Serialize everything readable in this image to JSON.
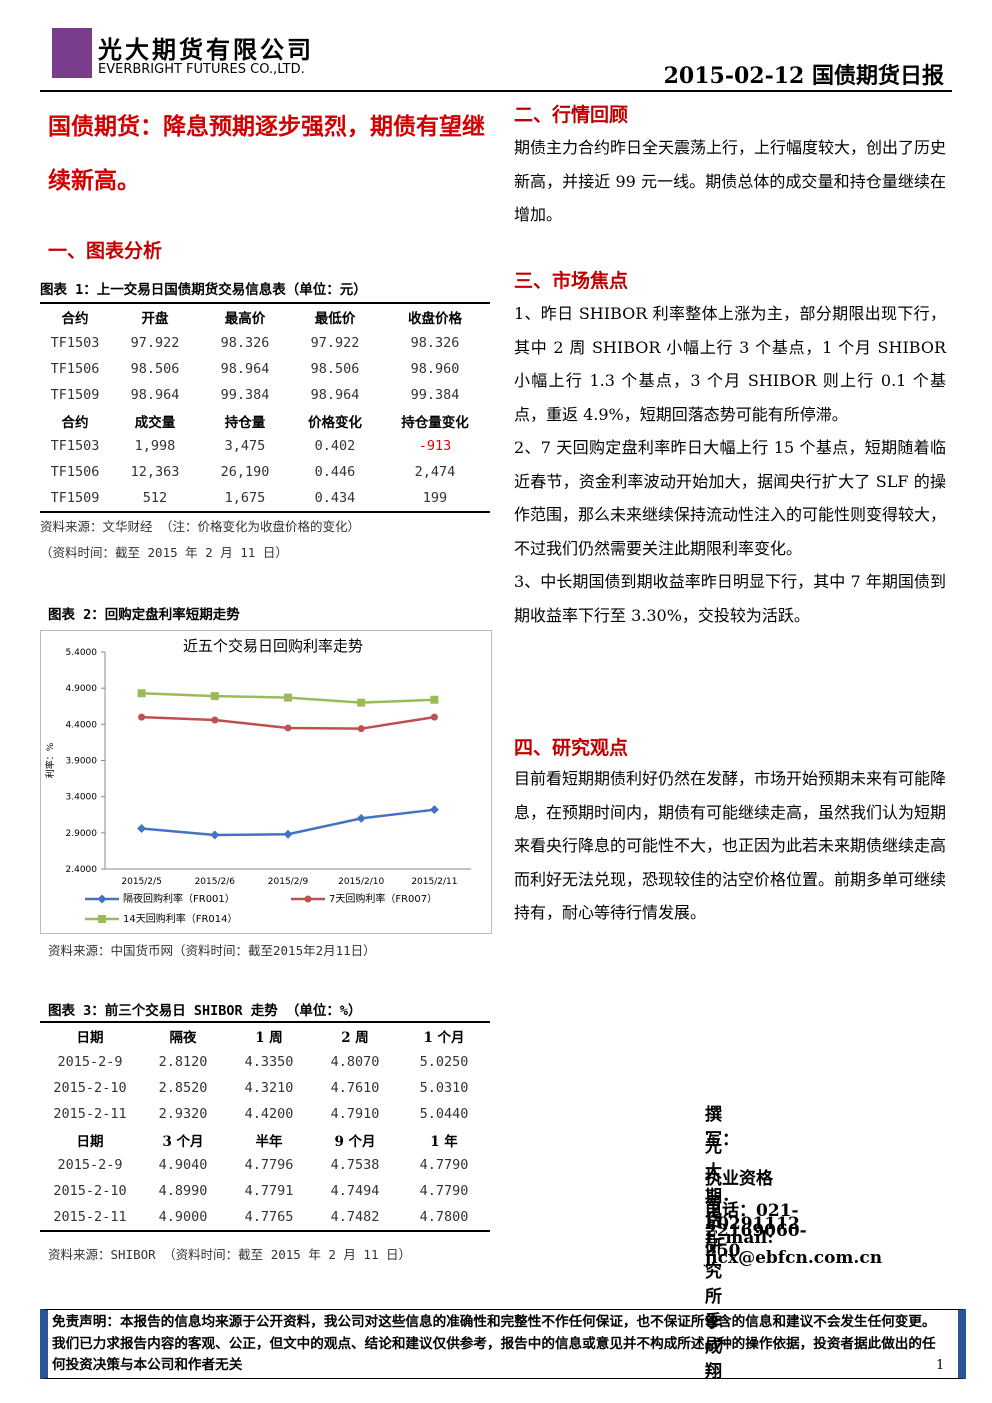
{
  "header": {
    "company": "光大期货有限公司",
    "company_en": "EVERBRIGHT FUTURES CO.,LTD.",
    "report": "2015-02-12 国债期货日报"
  },
  "title": "国债期货：降息预期逐步强烈，期债有望继续新高。",
  "section1": "一、图表分析",
  "table1": {
    "caption": "图表 1：上一交易日国债期货交易信息表（单位：元）",
    "blocks": [
      {
        "header": [
          "合约",
          "开盘",
          "最高价",
          "最低价",
          "收盘价格"
        ],
        "rows": [
          [
            "TF1503",
            "97.922",
            "98.326",
            "97.922",
            "98.326"
          ],
          [
            "TF1506",
            "98.506",
            "98.964",
            "98.506",
            "98.960"
          ],
          [
            "TF1509",
            "98.964",
            "99.384",
            "98.964",
            "99.384"
          ]
        ]
      },
      {
        "header": [
          "合约",
          "成交量",
          "持仓量",
          "价格变化",
          "持仓量变化"
        ],
        "rows": [
          [
            "TF1503",
            "1,998",
            "3,475",
            "0.402",
            "-913"
          ],
          [
            "TF1506",
            "12,363",
            "26,190",
            "0.446",
            "2,474"
          ],
          [
            "TF1509",
            "512",
            "1,675",
            "0.434",
            "199"
          ]
        ]
      }
    ],
    "source": "资料来源：文华财经 （注：价格变化为收盘价格的变化）",
    "time": "（资料时间：截至 2015 年 2 月 11 日）"
  },
  "figure2": {
    "caption": "图表 2：回购定盘利率短期走势",
    "source": "资料来源：中国货币网（资料时间：截至2015年2月11日）"
  },
  "chart_data": {
    "type": "line",
    "title": "近五个交易日回购利率走势",
    "y_label": "利率：%",
    "categories": [
      "2015/2/5",
      "2015/2/6",
      "2015/2/9",
      "2015/2/10",
      "2015/2/11"
    ],
    "ylim": [
      2.4,
      5.4
    ],
    "yticks": [
      {
        "value": 2.4,
        "label": "2.4000"
      },
      {
        "value": 2.9,
        "label": "2.9000"
      },
      {
        "value": 3.4,
        "label": "3.4000"
      },
      {
        "value": 3.9,
        "label": "3.9000"
      },
      {
        "value": 4.4,
        "label": "4.4000"
      },
      {
        "value": 4.9,
        "label": "4.9000"
      },
      {
        "value": 5.4,
        "label": "5.4000"
      }
    ],
    "series": [
      {
        "name": "隔夜回购利率（FR001）",
        "color": "#4472c4",
        "marker": "diamond",
        "values": [
          2.96,
          2.87,
          2.88,
          3.1,
          3.22
        ]
      },
      {
        "name": "7天回购利率（FR007）",
        "color": "#c0504d",
        "marker": "circle",
        "values": [
          4.5,
          4.46,
          4.35,
          4.34,
          4.5
        ]
      },
      {
        "name": "14天回购利率（FR014）",
        "color": "#9bbb59",
        "marker": "square",
        "values": [
          4.83,
          4.79,
          4.77,
          4.7,
          4.74
        ]
      }
    ]
  },
  "table3": {
    "caption": "图表 3：前三个交易日 SHIBOR 走势 （单位：%）",
    "blocks": [
      {
        "header": [
          "日期",
          "隔夜",
          "1 周",
          "2 周",
          "1 个月"
        ],
        "rows": [
          [
            "2015-2-9",
            "2.8120",
            "4.3350",
            "4.8070",
            "5.0250"
          ],
          [
            "2015-2-10",
            "2.8520",
            "4.3210",
            "4.7610",
            "5.0310"
          ],
          [
            "2015-2-11",
            "2.9320",
            "4.4200",
            "4.7910",
            "5.0440"
          ]
        ]
      },
      {
        "header": [
          "日期",
          "3 个月",
          "半年",
          "9 个月",
          "1 年"
        ],
        "rows": [
          [
            "2015-2-9",
            "4.9040",
            "4.7796",
            "4.7538",
            "4.7790"
          ],
          [
            "2015-2-10",
            "4.8990",
            "4.7791",
            "4.7494",
            "4.7790"
          ],
          [
            "2015-2-11",
            "4.9000",
            "4.7765",
            "4.7482",
            "4.7800"
          ]
        ]
      }
    ],
    "source": "资料来源：SHIBOR （资料时间：截至 2015 年 2 月 11 日）"
  },
  "section2": {
    "title": "二、行情回顾",
    "paragraphs": [
      "期债主力合约昨日全天震荡上行，上行幅度较大，创出了历史新高，并接近 99 元一线。期债总体的成交量和持仓量继续在增加。"
    ]
  },
  "section3": {
    "title": "三、市场焦点",
    "paragraphs": [
      "1、昨日 SHIBOR 利率整体上涨为主，部分期限出现下行，其中 2 周 SHIBOR 小幅上行 3 个基点，1 个月 SHIBOR 小幅上行 1.3 个基点，3 个月 SHIBOR 则上行 0.1 个基点，重返 4.9%，短期回落态势可能有所停滞。",
      "2、7 天回购定盘利率昨日大幅上行 15 个基点，短期随着临近春节，资金利率波动开始加大，据闻央行扩大了 SLF 的操作范围，那么未来继续保持流动性注入的可能性则变得较大，不过我们仍然需要关注此期限利率变化。",
      "3、中长期国债到期收益率昨日明显下行，其中 7 年期国债到期收益率下行至 3.30%，交投较为活跃。"
    ]
  },
  "section4": {
    "title": "四、研究观点",
    "paragraphs": [
      "目前看短期期债利好仍然在发酵，市场开始预期未来有可能降息，在预期时间内，期债有可能继续走高，虽然我们认为短期来看央行降息的可能性不大，也正因为此若未来期债继续走高而利好无法兑现，恐现较佳的沽空价格位置。前期多单可继续持有，耐心等待行情发展。"
    ]
  },
  "author": [
    "撰写：",
    "光大期货研究所 季成翔",
    "执业资格号：F0291112",
    "电话：021-22169060-250",
    "E-mail: jicx@ebfcn.com.cn"
  ],
  "disclaimer": "免责声明：本报告的信息均来源于公开资料，我公司对这些信息的准确性和完整性不作任何保证，也不保证所包含的信息和建议不会发生任何变更。我们已力求报告内容的客观、公正，但文中的观点、结论和建议仅供参考，报告中的信息或意见并不构成所述品种的操作依据，投资者据此做出的任何投资决策与本公司和作者无关",
  "page": "1"
}
